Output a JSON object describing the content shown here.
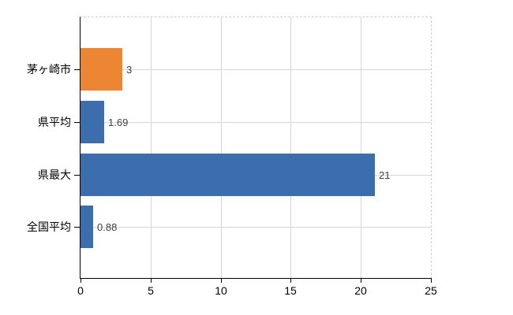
{
  "chart_data": {
    "type": "bar",
    "orientation": "horizontal",
    "title": "",
    "xlabel": "",
    "ylabel": "",
    "categories": [
      "茅ヶ崎市",
      "県平均",
      "県最大",
      "全国平均"
    ],
    "values": [
      3,
      1.69,
      21,
      0.88
    ],
    "value_labels": [
      "3",
      "1.69",
      "21",
      "0.88"
    ],
    "bar_colors": [
      "#ed8634",
      "#3c6dad",
      "#3c6dad",
      "#3c6dad"
    ],
    "xlim": [
      0,
      25
    ],
    "xticks": [
      0,
      5,
      10,
      15,
      20,
      25
    ],
    "xtick_labels": [
      "0",
      "5",
      "10",
      "15",
      "20",
      "25"
    ],
    "grid": true,
    "legend": false
  },
  "colors": {
    "background": "#ffffff",
    "bar_orange": "#ed8634",
    "bar_blue": "#3c6dad",
    "gridline": "#d6d6d6",
    "plot_border_dashed": "#cfcfcf",
    "axis": "#000000",
    "value_label_text": "#3f3f3f",
    "tick_label_text": "#000000"
  }
}
